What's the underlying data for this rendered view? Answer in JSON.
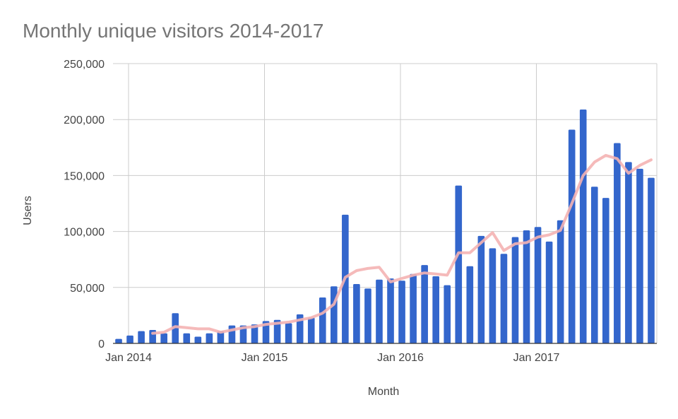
{
  "chart_data": {
    "type": "bar",
    "title": "Monthly unique visitors 2014-2017",
    "xlabel": "Month",
    "ylabel": "Users",
    "ylim": [
      0,
      250000
    ],
    "yticks": [
      "0",
      "50,000",
      "100,000",
      "150,000",
      "200,000",
      "250,000"
    ],
    "xtick_labels": [
      "Jan 2014",
      "Jan 2015",
      "Jan 2016",
      "Jan 2017"
    ],
    "xtick_month_index": [
      0,
      12,
      24,
      36
    ],
    "grid": true,
    "legend": "none",
    "colors": {
      "bars": "#3366cc",
      "trend": "#f4b3b3",
      "grid": "#cccccc",
      "text": "#444444",
      "title": "#757575"
    },
    "months": [
      "2014-01",
      "2014-02",
      "2014-03",
      "2014-04",
      "2014-05",
      "2014-06",
      "2014-07",
      "2014-08",
      "2014-09",
      "2014-10",
      "2014-11",
      "2014-12",
      "2015-01",
      "2015-02",
      "2015-03",
      "2015-04",
      "2015-05",
      "2015-06",
      "2015-07",
      "2015-08",
      "2015-09",
      "2015-10",
      "2015-11",
      "2015-12",
      "2016-01",
      "2016-02",
      "2016-03",
      "2016-04",
      "2016-05",
      "2016-06",
      "2016-07",
      "2016-08",
      "2016-09",
      "2016-10",
      "2016-11",
      "2016-12",
      "2017-01",
      "2017-02",
      "2017-03",
      "2017-04",
      "2017-05",
      "2017-06",
      "2017-07",
      "2017-08",
      "2017-09",
      "2017-10",
      "2017-11",
      "2017-12"
    ],
    "series": [
      {
        "type": "bar",
        "values": [
          4000,
          7000,
          11000,
          12000,
          9000,
          27000,
          9000,
          6000,
          9000,
          11000,
          16000,
          16000,
          17000,
          20000,
          21000,
          18000,
          26000,
          23000,
          41000,
          51000,
          115000,
          53000,
          49000,
          57000,
          58000,
          56000,
          62000,
          70000,
          60000,
          52000,
          141000,
          69000,
          96000,
          85000,
          80000,
          95000,
          101000,
          104000,
          91000,
          110000,
          191000,
          209000,
          140000,
          130000,
          179000,
          162000,
          156000,
          148000
        ]
      },
      {
        "type": "line",
        "values": [
          null,
          null,
          null,
          9000,
          10000,
          15000,
          14000,
          13000,
          13000,
          10000,
          12000,
          14000,
          15000,
          17000,
          18000,
          19000,
          21000,
          23000,
          27000,
          35000,
          59000,
          65000,
          67000,
          68000,
          55000,
          58000,
          61000,
          63000,
          62000,
          61000,
          81000,
          81000,
          90000,
          99000,
          83000,
          89000,
          90000,
          95000,
          97000,
          101000,
          125000,
          150000,
          162000,
          168000,
          165000,
          152000,
          159000,
          164000
        ]
      }
    ]
  }
}
